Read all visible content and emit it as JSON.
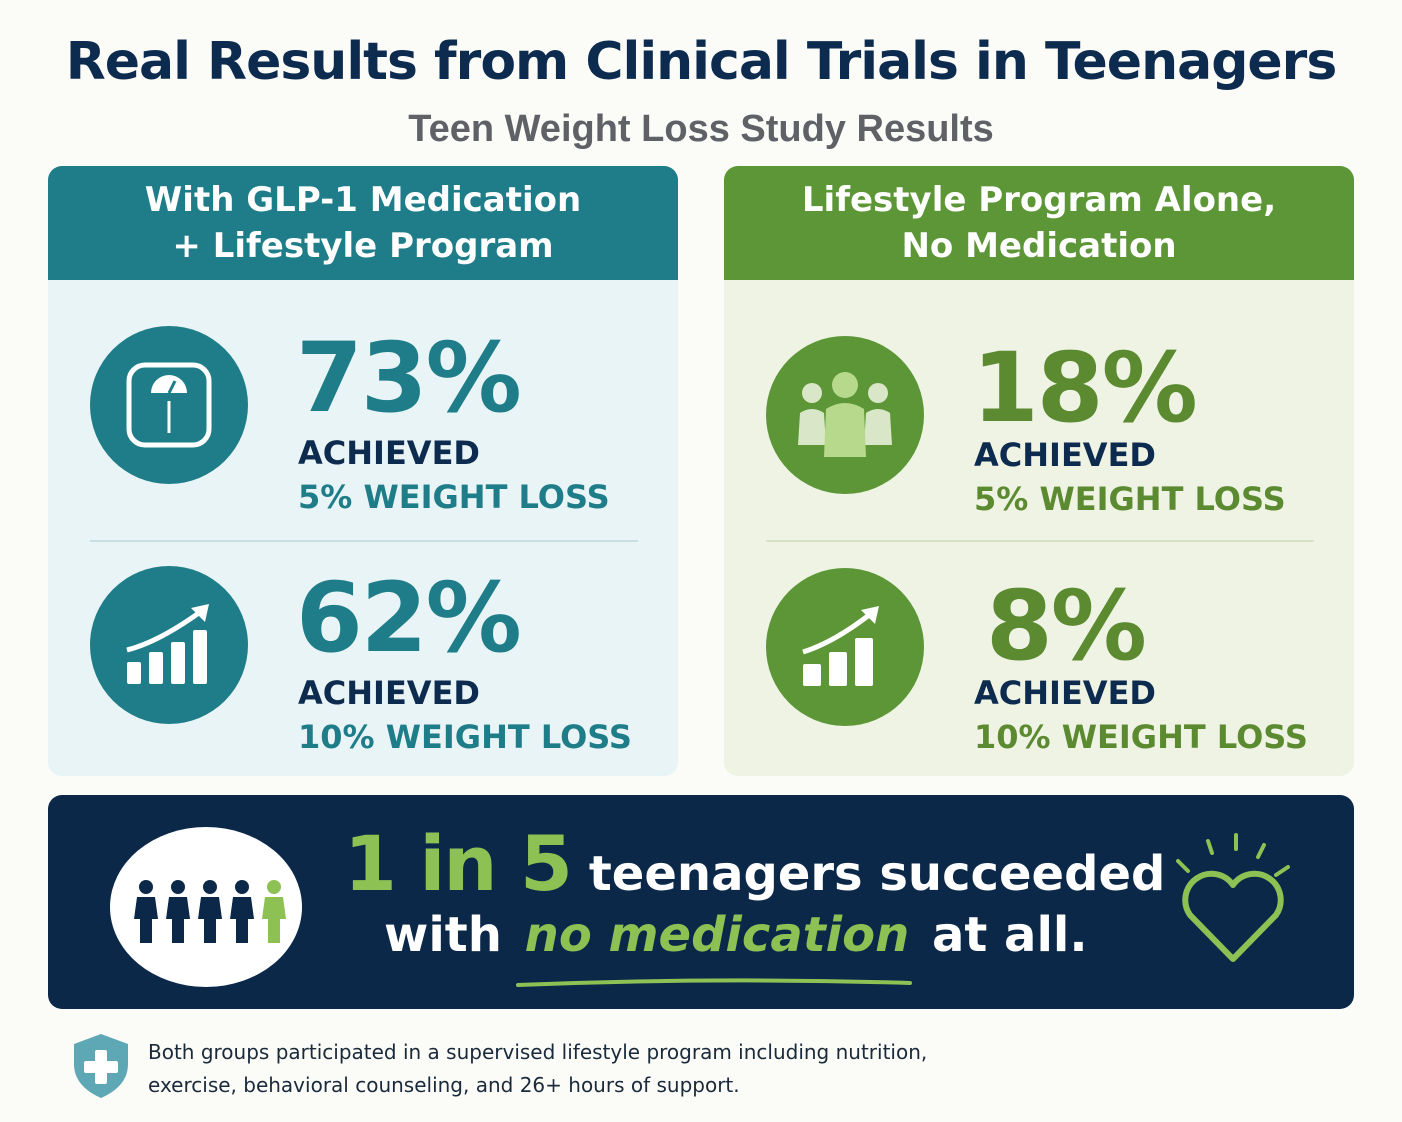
{
  "header": {
    "title": "Real Results from Clinical Trials in Teenagers",
    "subtitle": "Teen Weight Loss Study Results"
  },
  "panels": {
    "medication": {
      "heading_line1": "With GLP-1 Medication",
      "heading_line2": "+ Lifestyle Program",
      "color": "#1e7d88",
      "stats": [
        {
          "value": "73%",
          "achieved": "ACHIEVED",
          "loss": "5% WEIGHT LOSS",
          "icon": "scale-icon"
        },
        {
          "value": "62%",
          "achieved": "ACHIEVED",
          "loss": "10% WEIGHT LOSS",
          "icon": "growth-chart-icon"
        }
      ]
    },
    "lifestyle": {
      "heading_line1": "Lifestyle Program Alone,",
      "heading_line2": "No Medication",
      "color": "#5c9636",
      "stats": [
        {
          "value": "18%",
          "achieved": "ACHIEVED",
          "loss": "5% WEIGHT LOSS",
          "icon": "people-group-icon"
        },
        {
          "value": "8%",
          "achieved": "ACHIEVED",
          "loss": "10% WEIGHT LOSS",
          "icon": "growth-chart-icon"
        }
      ]
    }
  },
  "banner": {
    "ratio": "1 in 5",
    "line1_text": "teenagers succeeded",
    "line2_pre": "with",
    "line2_emphasis": "no medication",
    "line2_post": "at all.",
    "icons": [
      "people-row-icon",
      "heart-icon"
    ],
    "accent": "#8dc153",
    "background": "#0c2849"
  },
  "footer": {
    "line1": "Both groups participated in a supervised lifestyle program including nutrition,",
    "line2": "exercise, behavioral counseling, and 26+ hours of support.",
    "icon": "medical-shield-icon"
  }
}
